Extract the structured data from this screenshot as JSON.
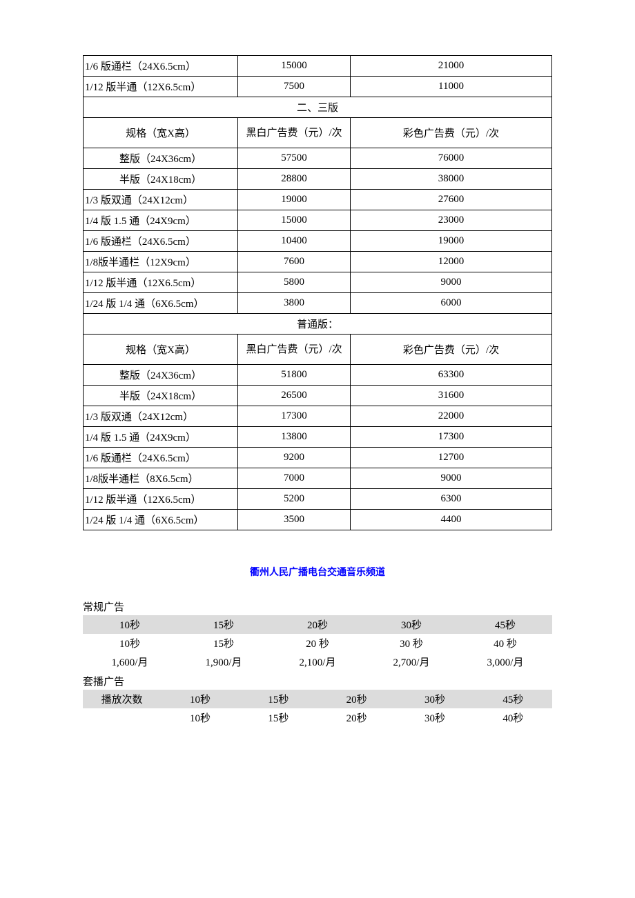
{
  "table1": {
    "initial_rows": [
      {
        "spec": "1/6 版通栏（24X6.5cm）",
        "bw": "15000",
        "color": "21000"
      },
      {
        "spec": "1/12 版半通（12X6.5cm）",
        "bw": "7500",
        "color": "11000"
      }
    ],
    "section2_title": "二、三版",
    "col_spec": "规格（宽X高）",
    "col_bw": "黑白广告费（元）/次",
    "col_color": "彩色广告费（元）/次",
    "section2_rows": [
      {
        "spec": "整版（24X36cm）",
        "bw": "57500",
        "color": "76000",
        "spec_align": "center"
      },
      {
        "spec": "半版（24X18cm）",
        "bw": "28800",
        "color": "38000",
        "spec_align": "center"
      },
      {
        "spec": "1/3 版双通（24X12cm）",
        "bw": "19000",
        "color": "27600",
        "spec_align": "left"
      },
      {
        "spec": "1/4 版 1.5 通（24X9cm）",
        "bw": "15000",
        "color": "23000",
        "spec_align": "left"
      },
      {
        "spec": "1/6 版通栏（24X6.5cm）",
        "bw": "10400",
        "color": "19000",
        "spec_align": "left"
      },
      {
        "spec": "1/8版半通栏（12X9cm）",
        "bw": "7600",
        "color": "12000",
        "spec_align": "left"
      },
      {
        "spec": "1/12 版半通（12X6.5cm）",
        "bw": "5800",
        "color": "9000",
        "spec_align": "left"
      },
      {
        "spec": "1/24 版 1/4 通（6X6.5cm）",
        "bw": "3800",
        "color": "6000",
        "spec_align": "left"
      }
    ],
    "section3_title": "普通版：",
    "section3_rows": [
      {
        "spec": "整版（24X36cm）",
        "bw": "51800",
        "color": "63300",
        "spec_align": "center"
      },
      {
        "spec": "半版（24X18cm）",
        "bw": "26500",
        "color": "31600",
        "spec_align": "center"
      },
      {
        "spec": "1/3 版双通（24X12cm）",
        "bw": "17300",
        "color": "22000",
        "spec_align": "left"
      },
      {
        "spec": "1/4 版 1.5 通（24X9cm）",
        "bw": "13800",
        "color": "17300",
        "spec_align": "left"
      },
      {
        "spec": "1/6 版通栏（24X6.5cm）",
        "bw": "9200",
        "color": "12700",
        "spec_align": "left"
      },
      {
        "spec": "1/8版半通栏（8X6.5cm）",
        "bw": "7000",
        "color": "9000",
        "spec_align": "left"
      },
      {
        "spec": "1/12 版半通（12X6.5cm）",
        "bw": "5200",
        "color": "6300",
        "spec_align": "left"
      },
      {
        "spec": "1/24 版 1/4 通（6X6.5cm）",
        "bw": "3500",
        "color": "4400",
        "spec_align": "left"
      }
    ]
  },
  "radio": {
    "channel_title": "衢州人民广播电台交通音乐频道",
    "regular_label": "常规广告",
    "combo_label": "套播广告",
    "play_count_label": "播放次数",
    "header_durations": [
      "10秒",
      "15秒",
      "20秒",
      "30秒",
      "45秒"
    ],
    "sub_durations": [
      "10秒",
      "15秒",
      "20 秒",
      "30 秒",
      "40 秒"
    ],
    "monthly_prices": [
      "1,600/月",
      "1,900/月",
      "2,100/月",
      "2,700/月",
      "3,000/月"
    ],
    "combo_header": [
      "10秒",
      "15秒",
      "20秒",
      "30秒",
      "45秒"
    ],
    "combo_row": [
      "10秒",
      "15秒",
      "20秒",
      "30秒",
      "40秒"
    ]
  },
  "style": {
    "border_color": "#000000",
    "background": "#ffffff",
    "gray_bg": "#dcdcdc",
    "link_color": "#0000ff",
    "font_family": "SimSun",
    "base_font_size": 15
  }
}
